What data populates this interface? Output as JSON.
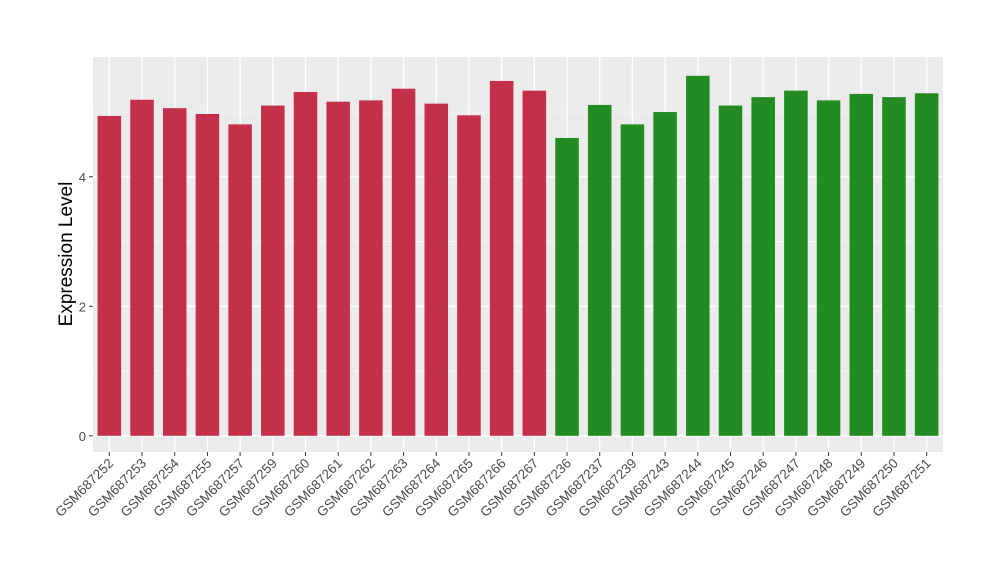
{
  "chart_data": {
    "type": "bar",
    "title": "",
    "xlabel": "",
    "ylabel": "Expression Level",
    "ylim": [
      -0.25,
      5.85
    ],
    "yticks": [
      0,
      2,
      4
    ],
    "ytick_labels": [
      "0",
      "2",
      "4"
    ],
    "grid": true,
    "background": "#ebebeb",
    "categories": [
      "GSM687252",
      "GSM687253",
      "GSM687254",
      "GSM687255",
      "GSM687257",
      "GSM687259",
      "GSM687260",
      "GSM687261",
      "GSM687262",
      "GSM687263",
      "GSM687264",
      "GSM687265",
      "GSM687266",
      "GSM687267",
      "GSM687236",
      "GSM687237",
      "GSM687239",
      "GSM687243",
      "GSM687244",
      "GSM687245",
      "GSM687246",
      "GSM687247",
      "GSM687248",
      "GSM687249",
      "GSM687250",
      "GSM687251"
    ],
    "values": [
      4.94,
      5.19,
      5.06,
      4.97,
      4.81,
      5.1,
      5.31,
      5.16,
      5.18,
      5.36,
      5.13,
      4.95,
      5.48,
      5.33,
      4.6,
      5.11,
      4.81,
      5.0,
      5.56,
      5.1,
      5.23,
      5.33,
      5.18,
      5.28,
      5.23,
      5.29
    ],
    "groups": [
      "red",
      "red",
      "red",
      "red",
      "red",
      "red",
      "red",
      "red",
      "red",
      "red",
      "red",
      "red",
      "red",
      "red",
      "green",
      "green",
      "green",
      "green",
      "green",
      "green",
      "green",
      "green",
      "green",
      "green",
      "green",
      "green"
    ],
    "colors": {
      "red": "#c4304a",
      "green": "#228b22"
    }
  }
}
